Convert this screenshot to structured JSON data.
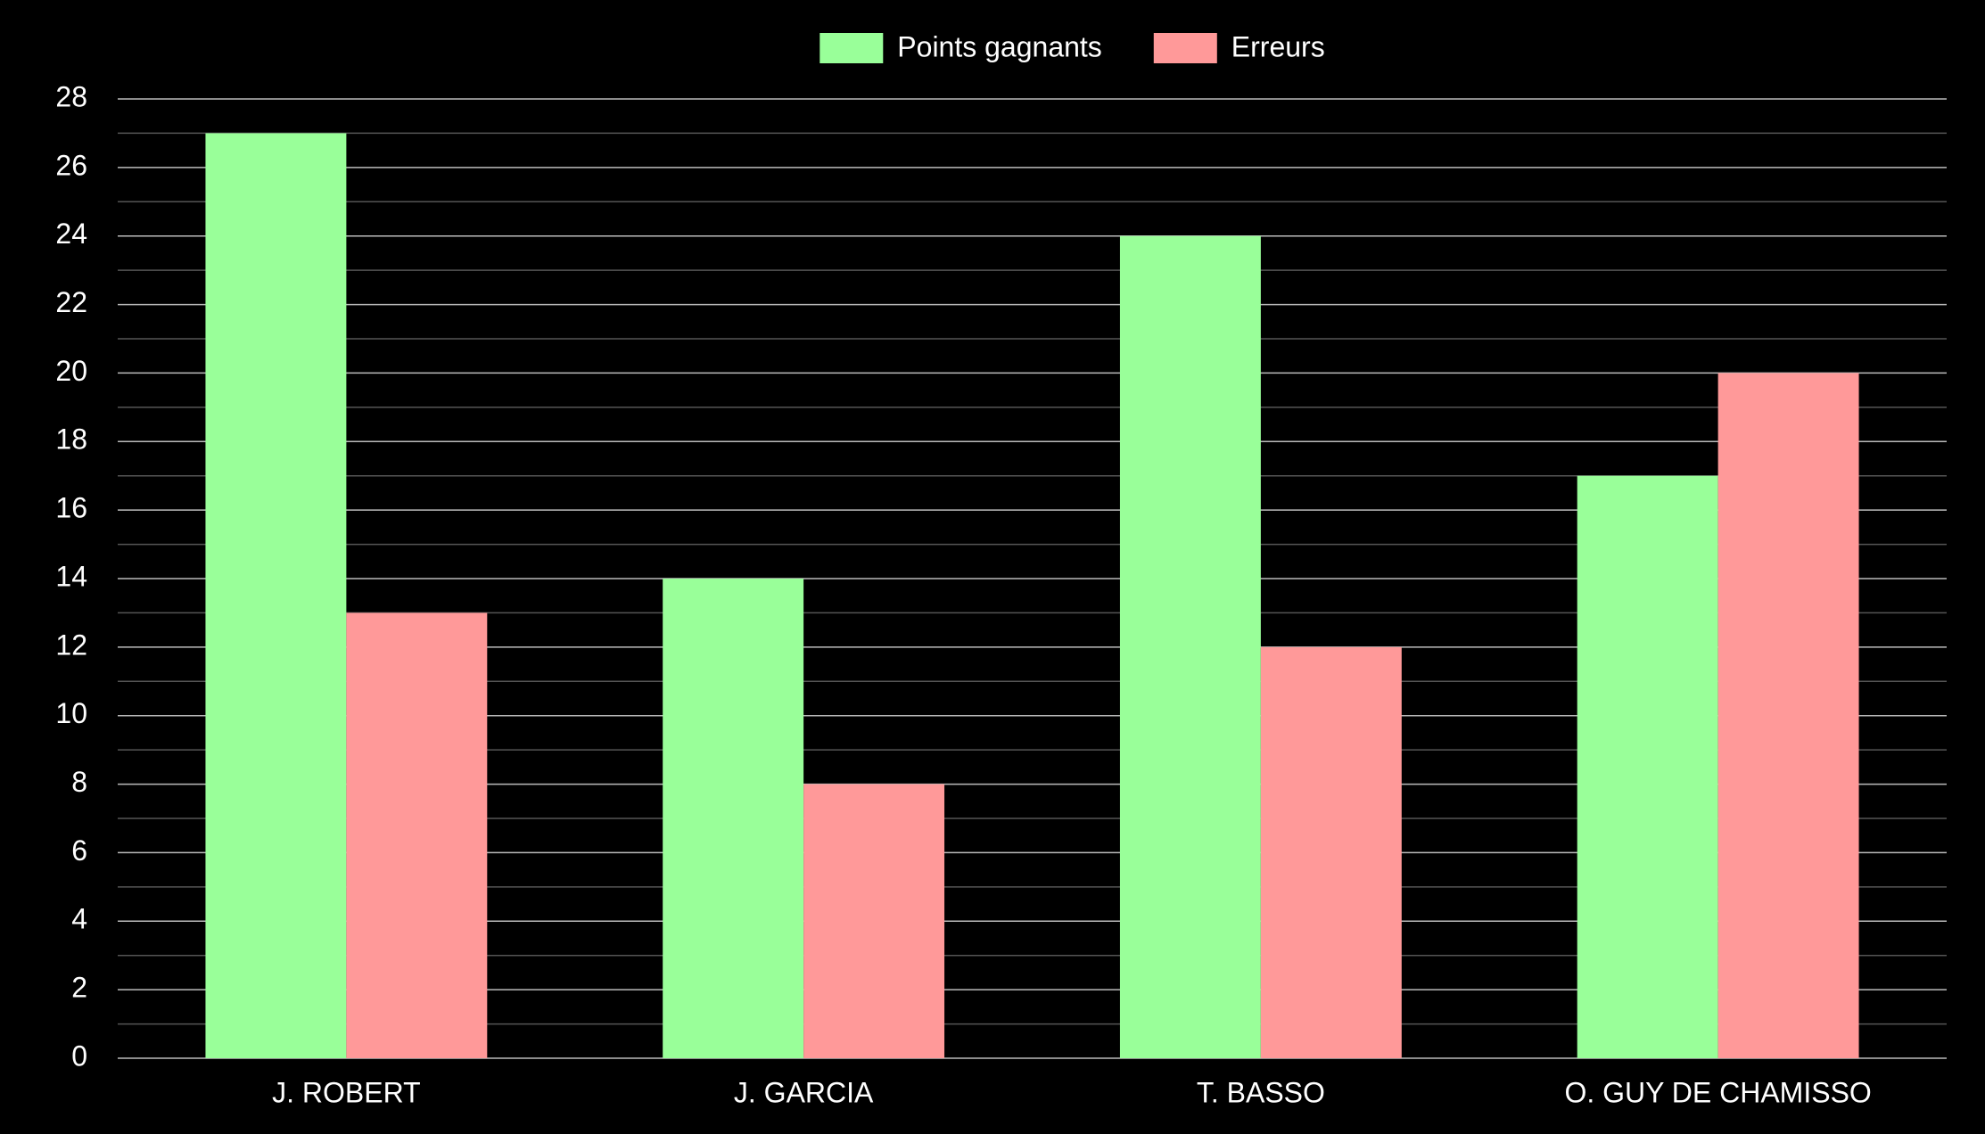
{
  "chart_data": {
    "type": "bar",
    "categories": [
      "J. ROBERT",
      "J. GARCIA",
      "T. BASSO",
      "O. GUY DE CHAMISSO"
    ],
    "series": [
      {
        "name": "Points gagnants",
        "color": "#99ff99",
        "values": [
          27,
          14,
          24,
          17
        ]
      },
      {
        "name": "Erreurs",
        "color": "#ff9999",
        "values": [
          13,
          8,
          12,
          20
        ]
      }
    ],
    "ylim": [
      0,
      28
    ],
    "yticks": [
      0,
      2,
      4,
      6,
      8,
      10,
      12,
      14,
      16,
      18,
      20,
      22,
      24,
      26,
      28
    ],
    "grid": true,
    "minor_grid": true,
    "legend": "top"
  }
}
